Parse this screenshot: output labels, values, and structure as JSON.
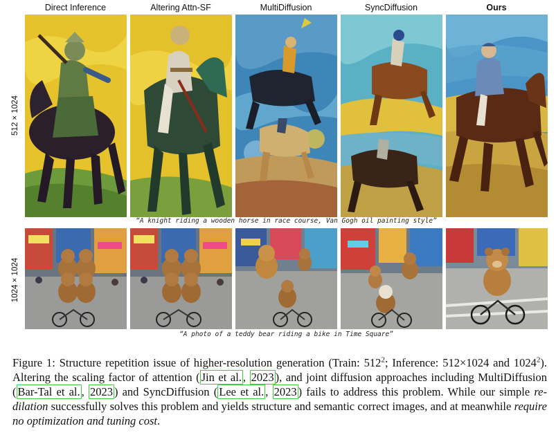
{
  "columns": [
    "Direct Inference",
    "Altering Attn-SF",
    "MultiDiffusion",
    "SyncDiffusion",
    "Ours"
  ],
  "rows": [
    {
      "label": "512 × 1024",
      "prompt": "“A knight riding a wooden horse in race course, Van Gogh oil painting style”",
      "images": [
        "knight-direct-inference",
        "knight-altering-attn-sf",
        "knight-multidiffusion",
        "knight-syncdiffusion",
        "knight-ours"
      ]
    },
    {
      "label": "1024 × 1024",
      "prompt": "“A photo of a teddy bear riding a bike in Time Square”",
      "images": [
        "teddy-direct-inference",
        "teddy-altering-attn-sf",
        "teddy-multidiffusion",
        "teddy-syncdiffusion",
        "teddy-ours"
      ]
    }
  ],
  "caption": {
    "p1": "Figure 1:  Structure repetition issue of higher-resolution generation (Train:  512",
    "sup1": "2",
    "p2": "; Inference: 512×1024 and 1024",
    "sup2": "2",
    "p3": ").  Altering the scaling factor of attention (",
    "cite1a": "Jin et al.",
    "sep1": ", ",
    "cite1b": "2023",
    "p4": "), and joint diffusion approaches including MultiDiffusion (",
    "cite2a": "Bar-Tal et al.",
    "sep2": ", ",
    "cite2b": "2023",
    "p5": ") and SyncDiffusion (",
    "cite3a": "Lee et al.",
    "sep3": ", ",
    "cite3b": "2023",
    "p6": ") fails to address this problem.  While our simple ",
    "em1": "re-dilation",
    "p7": " successfully solves this problem and yields structure and semantic correct images, and at meanwhile ",
    "em2": "require no optimization and tuning cost",
    "p8": "."
  },
  "colors": {
    "citation_box": "#39d13b",
    "vangogh_yellow": "#e8c42a",
    "vangogh_blue": "#3a78b8",
    "street_gray": "#8a8a8a",
    "bear_brown": "#a8733a"
  }
}
